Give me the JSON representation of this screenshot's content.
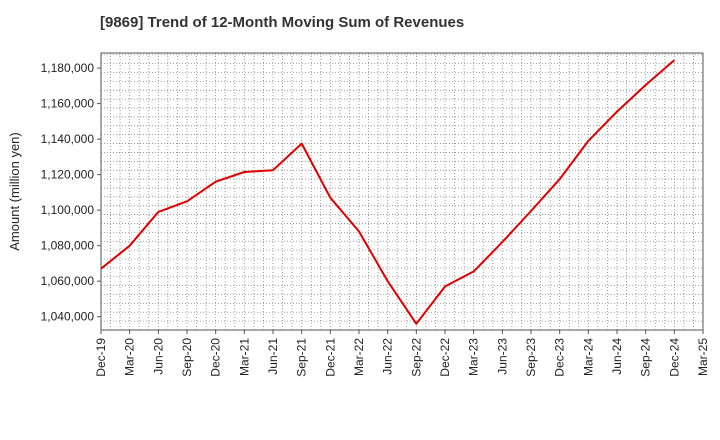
{
  "chart_data": {
    "type": "line",
    "title": "[9869]  Trend of 12-Month Moving Sum of Revenues",
    "xlabel": "",
    "ylabel": "Amount (million yen)",
    "categories": [
      "Dec-19",
      "Mar-20",
      "Jun-20",
      "Sep-20",
      "Dec-20",
      "Mar-21",
      "Jun-21",
      "Sep-21",
      "Dec-21",
      "Mar-22",
      "Jun-22",
      "Sep-22",
      "Dec-22",
      "Mar-23",
      "Jun-23",
      "Sep-23",
      "Dec-23",
      "Mar-24",
      "Jun-24",
      "Sep-24",
      "Dec-24",
      "Mar-25"
    ],
    "series": [
      {
        "values": [
          1067000,
          1080000,
          1099000,
          1105000,
          1116000,
          1121500,
          1122500,
          1137500,
          1107000,
          1088000,
          1060000,
          1036000,
          1057000,
          1065500,
          1082000,
          1099500,
          1117500,
          1139000,
          1155500,
          1170500,
          1184500,
          null
        ],
        "color": "#e00000"
      }
    ],
    "yticks": [
      1040000,
      1060000,
      1080000,
      1100000,
      1120000,
      1140000,
      1160000,
      1180000
    ],
    "ytick_labels": [
      "1,040,000",
      "1,060,000",
      "1,080,000",
      "1,100,000",
      "1,120,000",
      "1,140,000",
      "1,160,000",
      "1,180,000"
    ],
    "ylim": [
      1032500,
      1188500
    ],
    "grid": true
  }
}
